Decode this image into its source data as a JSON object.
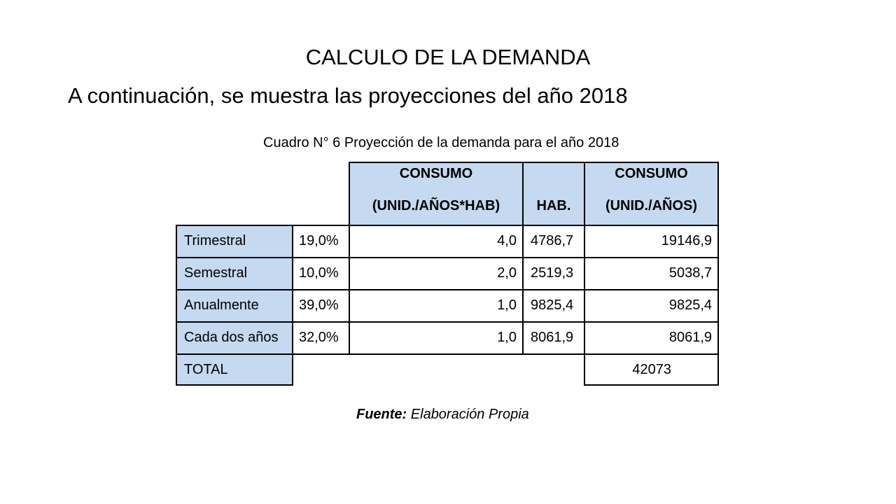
{
  "slide": {
    "title": "CALCULO DE LA DEMANDA",
    "subtitle": "A continuación, se muestra las proyecciones del año 2018"
  },
  "table": {
    "caption": "Cuadro N° 6 Proyección de la demanda para el año 2018",
    "headers": {
      "consumo_hab": [
        "CONSUMO",
        "(UNID./AÑOS*HAB)"
      ],
      "hab": "HAB.",
      "consumo_total": [
        "CONSUMO",
        "(UNID./AÑOS)"
      ]
    },
    "rows": [
      {
        "label": "Trimestral",
        "percent": "19,0%",
        "consumo_hab": "4,0",
        "hab": "4786,7",
        "consumo_total": "19146,9"
      },
      {
        "label": "Semestral",
        "percent": "10,0%",
        "consumo_hab": "2,0",
        "hab": "2519,3",
        "consumo_total": "5038,7"
      },
      {
        "label": "Anualmente",
        "percent": "39,0%",
        "consumo_hab": "1,0",
        "hab": "9825,4",
        "consumo_total": "9825,4"
      },
      {
        "label": "Cada dos años",
        "percent": "32,0%",
        "consumo_hab": "1,0",
        "hab": "8061,9",
        "consumo_total": "8061,9"
      }
    ],
    "total": {
      "label": "TOTAL",
      "value": "42073"
    },
    "fill_color": "#c5d9f1"
  },
  "source": {
    "label": "Fuente:",
    "text": "Elaboración Propia"
  }
}
